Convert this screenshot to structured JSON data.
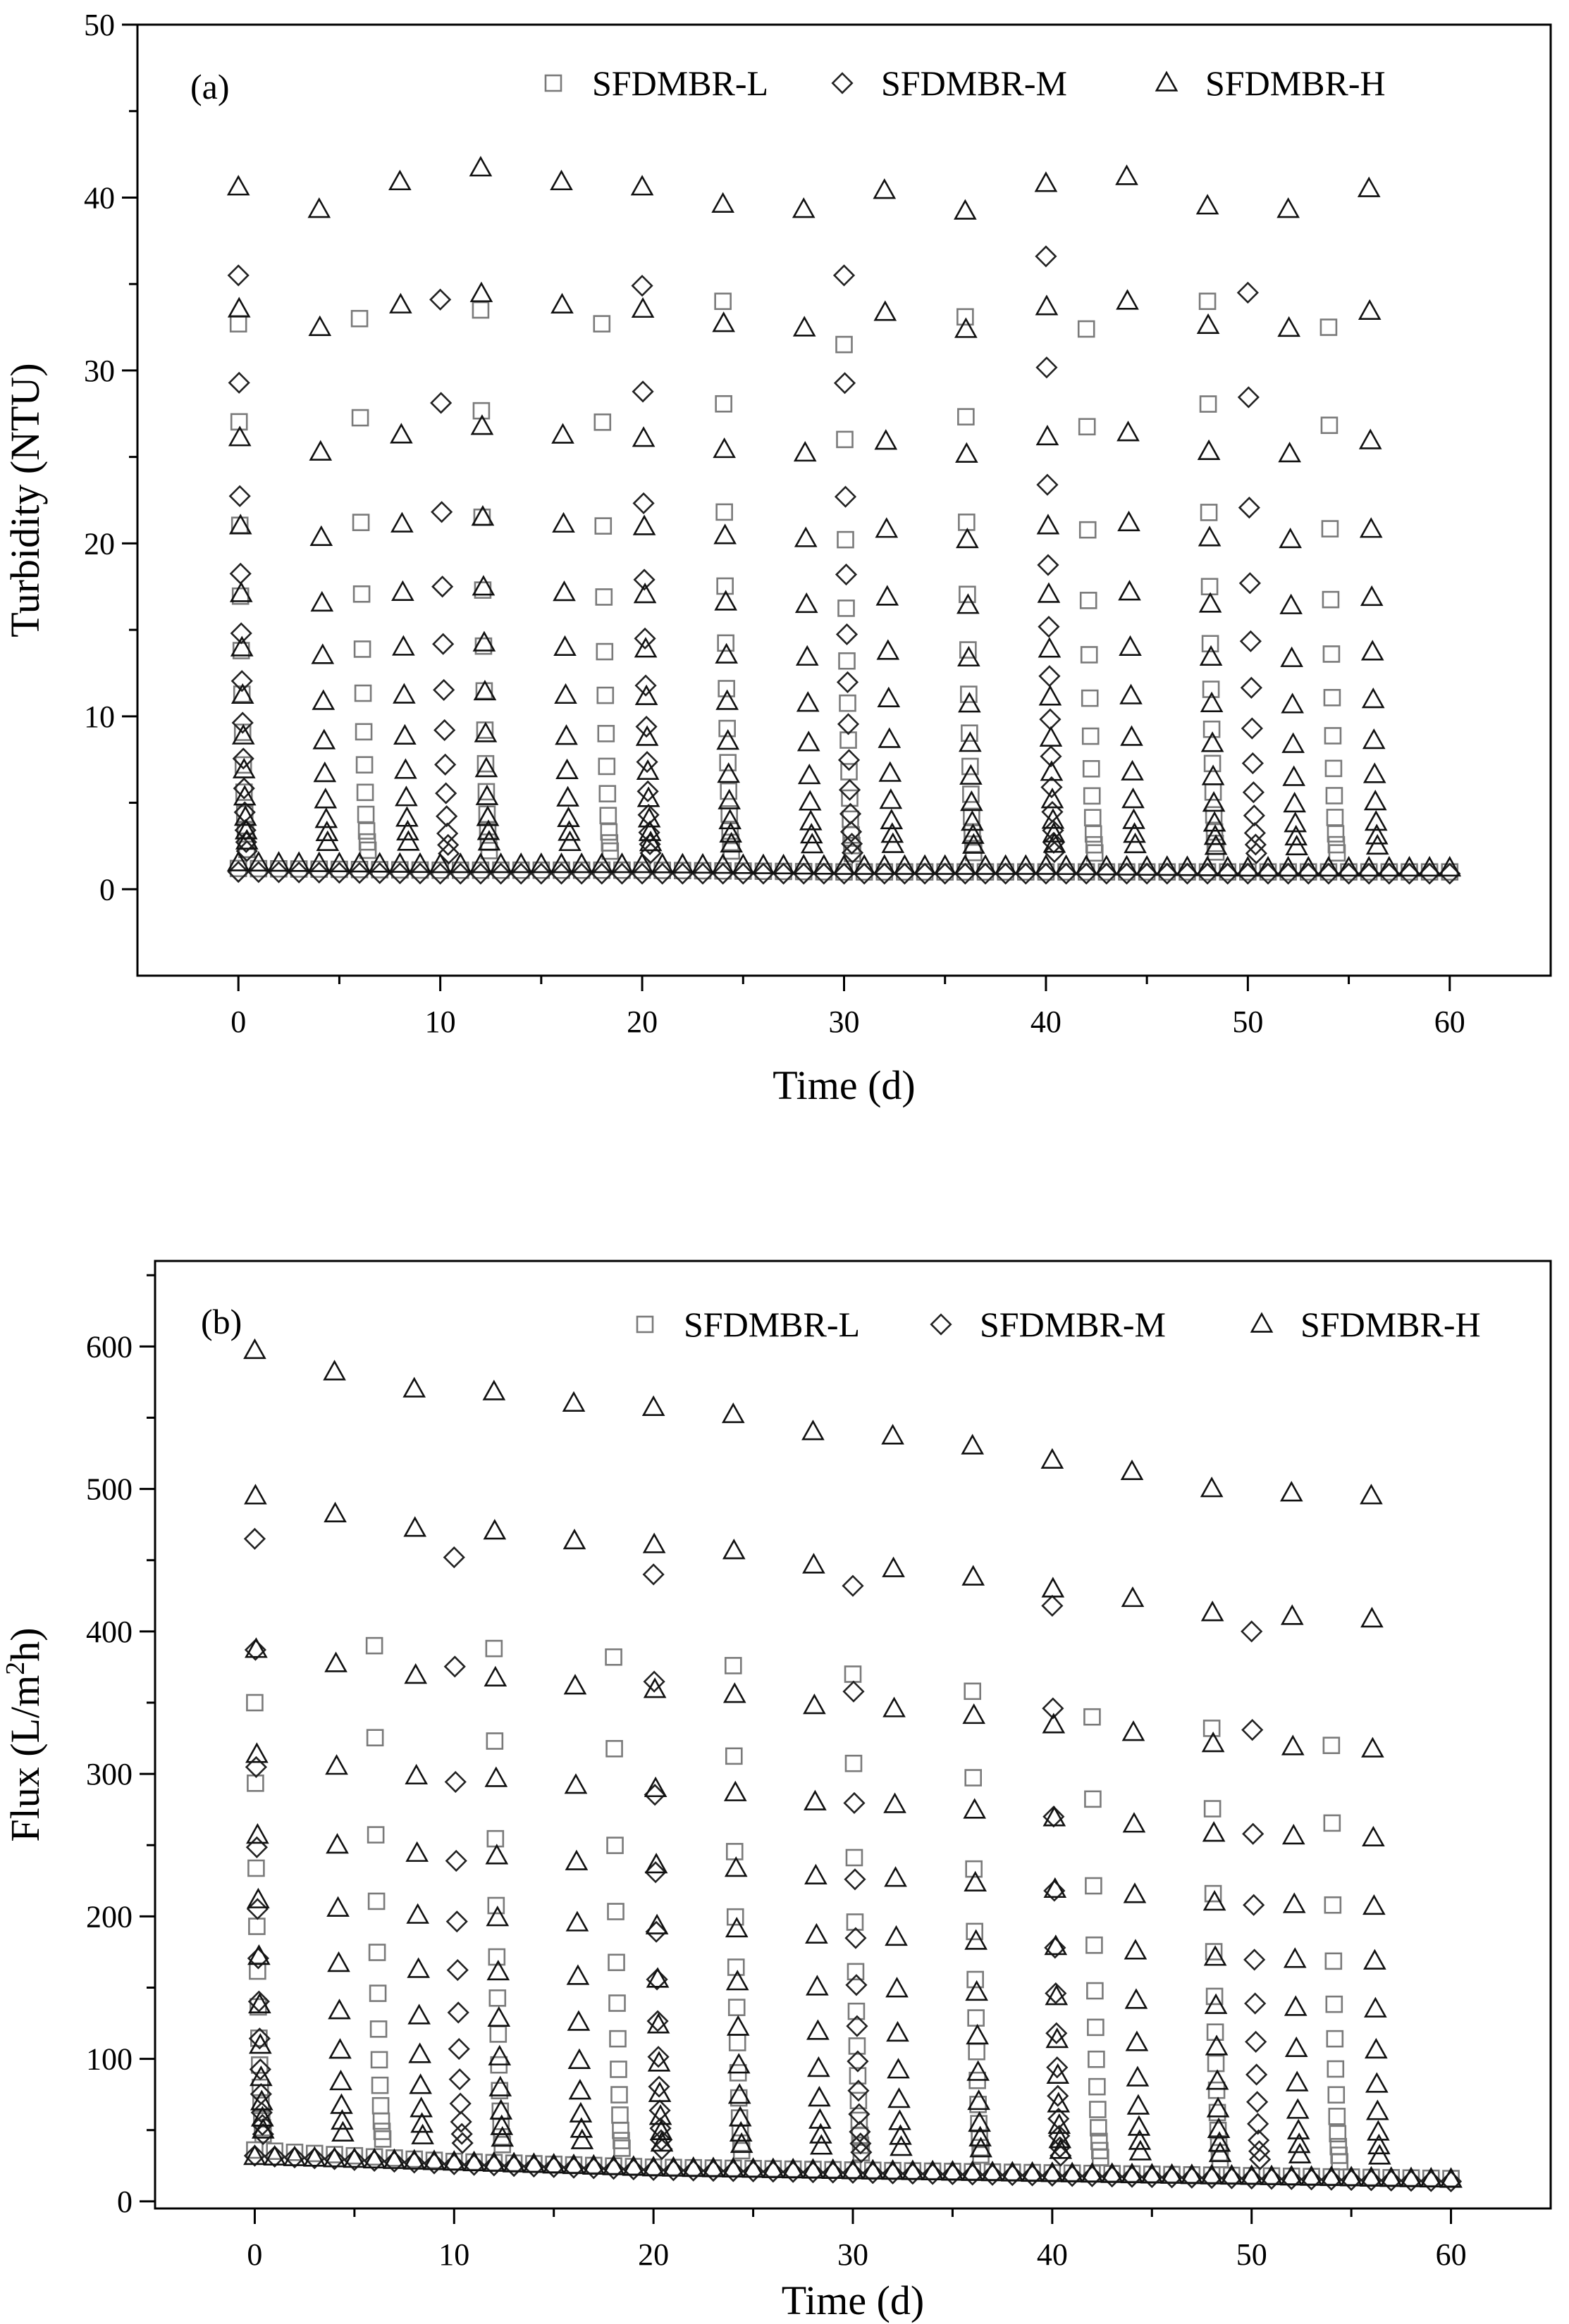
{
  "chart_data": [
    {
      "type": "scatter",
      "panel_label": "(a)",
      "xlabel": "Time (d)",
      "ylabel": "Turbidity (NTU)",
      "xlim": [
        -5,
        65
      ],
      "ylim": [
        -5,
        50
      ],
      "xticks": [
        0,
        10,
        20,
        30,
        40,
        50,
        60
      ],
      "yticks": [
        0,
        10,
        20,
        30,
        40,
        50
      ],
      "xtick_labels": [
        "0",
        "10",
        "20",
        "30",
        "40",
        "50",
        "60"
      ],
      "ytick_labels": [
        "0",
        "10",
        "20",
        "30",
        "40",
        "50"
      ],
      "legend": [
        "SFDMBR-L",
        "SFDMBR-M",
        "SFDMBR-H"
      ],
      "legend_position": "top",
      "marker_color": {
        "L": "#7a7a7a",
        "M": "#222222",
        "H": "#111111"
      },
      "series": [
        {
          "name": "SFDMBR-L",
          "marker": "square",
          "cycles": [
            [
              0,
              32.7
            ],
            [
              6,
              33.0
            ],
            [
              12,
              33.5
            ],
            [
              18,
              32.7
            ],
            [
              24,
              34.0
            ],
            [
              30,
              31.5
            ],
            [
              36,
              33.1
            ],
            [
              42,
              32.4
            ],
            [
              48,
              34.0
            ],
            [
              54,
              32.5
            ]
          ],
          "base": [
            [
              0,
              1.2
            ],
            [
              10,
              1.1
            ],
            [
              20,
              1.1
            ],
            [
              30,
              1.0
            ],
            [
              40,
              1.0
            ],
            [
              50,
              1.0
            ],
            [
              60,
              1.0
            ]
          ]
        },
        {
          "name": "SFDMBR-M",
          "marker": "diamond",
          "cycles": [
            [
              0,
              35.5
            ],
            [
              10,
              34.1
            ],
            [
              20,
              34.9
            ],
            [
              30,
              35.5
            ],
            [
              40,
              36.6
            ],
            [
              50,
              34.5
            ]
          ],
          "base": [
            [
              0,
              1.0
            ],
            [
              10,
              0.9
            ],
            [
              20,
              0.9
            ],
            [
              30,
              0.9
            ],
            [
              40,
              0.9
            ],
            [
              50,
              0.9
            ],
            [
              60,
              0.9
            ]
          ]
        },
        {
          "name": "SFDMBR-H",
          "marker": "triangle",
          "cycles": [
            [
              0,
              40.6
            ],
            [
              4,
              39.3
            ],
            [
              8,
              40.9
            ],
            [
              12,
              41.7
            ],
            [
              16,
              40.9
            ],
            [
              20,
              40.6
            ],
            [
              24,
              39.6
            ],
            [
              28,
              39.3
            ],
            [
              32,
              40.4
            ],
            [
              36,
              39.2
            ],
            [
              40,
              40.8
            ],
            [
              44,
              41.2
            ],
            [
              48,
              39.5
            ],
            [
              52,
              39.3
            ],
            [
              56,
              40.5
            ]
          ],
          "base": [
            [
              0,
              1.4
            ],
            [
              10,
              1.3
            ],
            [
              20,
              1.3
            ],
            [
              30,
              1.2
            ],
            [
              40,
              1.2
            ],
            [
              50,
              1.1
            ],
            [
              60,
              1.1
            ]
          ]
        }
      ]
    },
    {
      "type": "scatter",
      "panel_label": "(b)",
      "xlabel": "Time (d)",
      "ylabel": "Flux (L/m2h)",
      "xlim": [
        -5,
        65
      ],
      "ylim": [
        -5,
        660
      ],
      "xticks": [
        0,
        10,
        20,
        30,
        40,
        50,
        60
      ],
      "yticks": [
        0,
        100,
        200,
        300,
        400,
        500,
        600
      ],
      "xtick_labels": [
        "0",
        "10",
        "20",
        "30",
        "40",
        "50",
        "60"
      ],
      "ytick_labels": [
        "0",
        "100",
        "200",
        "300",
        "400",
        "500",
        "600"
      ],
      "legend": [
        "SFDMBR-L",
        "SFDMBR-M",
        "SFDMBR-H"
      ],
      "legend_position": "top",
      "marker_color": {
        "L": "#7a7a7a",
        "M": "#222222",
        "H": "#111111"
      },
      "series": [
        {
          "name": "SFDMBR-L",
          "marker": "square",
          "cycles": [
            [
              0,
              350
            ],
            [
              6,
              390
            ],
            [
              12,
              388
            ],
            [
              18,
              382
            ],
            [
              24,
              376
            ],
            [
              30,
              370
            ],
            [
              36,
              358
            ],
            [
              42,
              340
            ],
            [
              48,
              332
            ],
            [
              54,
              320
            ]
          ],
          "base": [
            [
              0,
              36
            ],
            [
              10,
              28
            ],
            [
              20,
              24
            ],
            [
              30,
              22
            ],
            [
              40,
              20
            ],
            [
              50,
              18
            ],
            [
              60,
              16
            ]
          ]
        },
        {
          "name": "SFDMBR-M",
          "marker": "diamond",
          "cycles": [
            [
              0,
              465
            ],
            [
              10,
              452
            ],
            [
              20,
              440
            ],
            [
              30,
              432
            ],
            [
              40,
              418
            ],
            [
              50,
              400
            ]
          ],
          "base": [
            [
              0,
              32
            ],
            [
              10,
              26
            ],
            [
              20,
              22
            ],
            [
              30,
              20
            ],
            [
              40,
              18
            ],
            [
              50,
              16
            ],
            [
              60,
              14
            ]
          ]
        },
        {
          "name": "SFDMBR-H",
          "marker": "triangle",
          "cycles": [
            [
              0,
              597
            ],
            [
              4,
              582
            ],
            [
              8,
              570
            ],
            [
              12,
              568
            ],
            [
              16,
              560
            ],
            [
              20,
              557
            ],
            [
              24,
              552
            ],
            [
              28,
              540
            ],
            [
              32,
              537
            ],
            [
              36,
              530
            ],
            [
              40,
              520
            ],
            [
              44,
              512
            ],
            [
              48,
              500
            ],
            [
              52,
              497
            ],
            [
              56,
              495
            ]
          ],
          "base": [
            [
              0,
              30
            ],
            [
              10,
              26
            ],
            [
              20,
              22
            ],
            [
              30,
              20
            ],
            [
              40,
              18
            ],
            [
              50,
              16
            ],
            [
              60,
              14
            ]
          ]
        }
      ]
    }
  ]
}
